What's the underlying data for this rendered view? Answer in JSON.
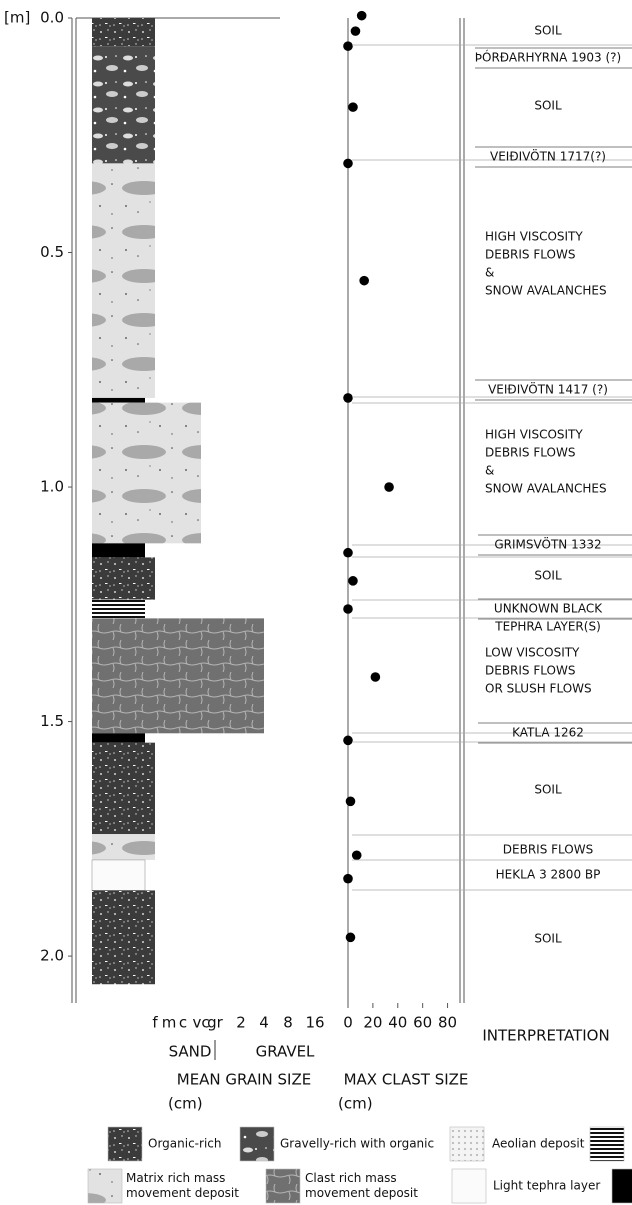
{
  "chart_data": {
    "type": "strip-log",
    "y_unit": "[m]",
    "ylim": [
      0,
      2.1
    ],
    "yticks": [
      {
        "value": 0,
        "label": "0.0"
      },
      0.5,
      {
        "value": 1,
        "label": "1.0"
      },
      1.5,
      {
        "value": 2,
        "label": "2.0"
      }
    ],
    "grain_size": {
      "ticks": [
        "f",
        "m",
        "c",
        "vc",
        "gr",
        "2",
        "4",
        "8",
        "16"
      ],
      "groups": [
        "SAND",
        "GRAVEL"
      ],
      "label": "MEAN GRAIN SIZE",
      "unit": "(cm)"
    },
    "layers": [
      {
        "top": 0,
        "bottom": 0.06,
        "legend": 0,
        "grain": "f"
      },
      {
        "top": 0.06,
        "bottom": 0.31,
        "legend": 1,
        "grain": "f"
      },
      {
        "top": 0.31,
        "bottom": 0.81,
        "legend": 4,
        "grain": "f"
      },
      {
        "top": 0.81,
        "bottom": 0.82,
        "legend": 7,
        "grain": null
      },
      {
        "top": 0.82,
        "bottom": 1.12,
        "legend": 4,
        "grain": "vc"
      },
      {
        "top": 1.12,
        "bottom": 1.15,
        "legend": 7,
        "grain": null
      },
      {
        "top": 1.15,
        "bottom": 1.24,
        "legend": 0,
        "grain": "f"
      },
      {
        "top": 1.24,
        "bottom": 1.28,
        "legend": 3,
        "grain": null
      },
      {
        "top": 1.28,
        "bottom": 1.525,
        "legend": 5,
        "grain": "4"
      },
      {
        "top": 1.525,
        "bottom": 1.545,
        "legend": 7,
        "grain": null
      },
      {
        "top": 1.545,
        "bottom": 1.74,
        "legend": 0,
        "grain": "f"
      },
      {
        "top": 1.74,
        "bottom": 1.795,
        "legend": 4,
        "grain": "f"
      },
      {
        "top": 1.795,
        "bottom": 1.86,
        "legend": 6,
        "grain": null
      },
      {
        "top": 1.86,
        "bottom": 2.06,
        "legend": 0,
        "grain": "f"
      }
    ],
    "clast": {
      "label": "MAX CLAST SIZE",
      "unit": "(cm)",
      "xlim": [
        0,
        90
      ],
      "xticks": [
        0,
        20,
        40,
        60,
        80
      ],
      "depth": [
        -0.005,
        0.028,
        0.06,
        0.19,
        0.31,
        0.56,
        0.81,
        1.0,
        1.14,
        1.2,
        1.26,
        1.405,
        1.54,
        1.67,
        1.785,
        1.835,
        1.96
      ],
      "size": [
        11,
        6,
        0,
        4,
        0,
        13,
        0,
        33,
        0,
        4,
        0,
        22,
        0,
        2,
        7,
        0,
        2
      ]
    },
    "interpretation": {
      "title": "INTERPRETATION",
      "units": [
        [
          "SOIL"
        ],
        [
          "ÞÓRÐARHYRNA 1903 (?)"
        ],
        [
          "SOIL"
        ],
        [
          "VEIÐIVÖTN 1717(?)"
        ],
        [
          "HIGH VISCOSITY",
          "DEBRIS FLOWS",
          "&",
          "SNOW AVALANCHES"
        ],
        [
          "VEIÐIVÖTN 1417 (?)"
        ],
        [
          "HIGH VISCOSITY",
          "DEBRIS FLOWS",
          "&",
          "SNOW AVALANCHES"
        ],
        [
          "GRIMSVÖTN 1332"
        ],
        [
          "SOIL"
        ],
        [
          "UNKNOWN BLACK",
          "TEPHRA LAYER(S)"
        ],
        [
          "LOW VISCOSITY",
          "DEBRIS FLOWS",
          "OR SLUSH FLOWS"
        ],
        [
          "KATLA 1262"
        ],
        [
          "SOIL"
        ],
        [
          "DEBRIS FLOWS"
        ],
        [
          "HEKLA 3 2800 BP"
        ],
        [
          "SOIL"
        ]
      ]
    },
    "legend": [
      {
        "label": [
          "Organic-rich"
        ]
      },
      {
        "label": [
          "Gravelly-rich with organic"
        ]
      },
      {
        "label": [
          "Aeolian deposit"
        ]
      },
      {
        "label": []
      },
      {
        "label": [
          "Matrix rich mass",
          "movement deposit"
        ]
      },
      {
        "label": [
          "Clast rich mass",
          "movement deposit"
        ]
      },
      {
        "label": [
          "Light tephra layer"
        ]
      },
      {
        "label": []
      }
    ]
  }
}
